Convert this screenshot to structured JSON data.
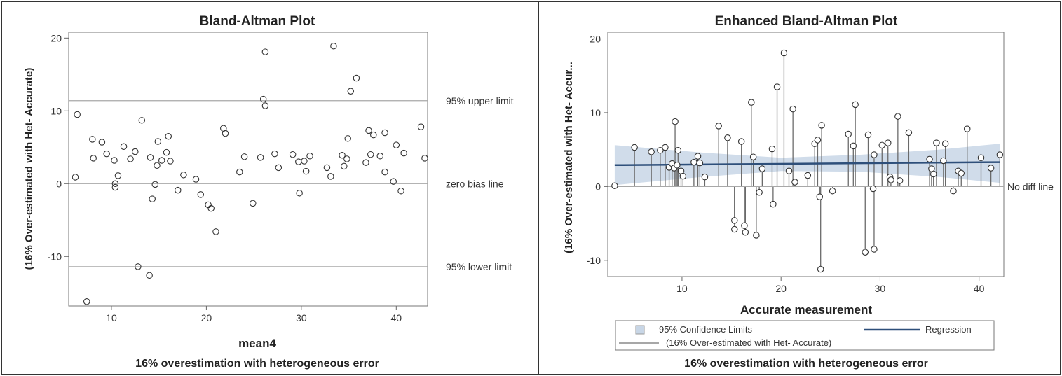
{
  "chart_data": [
    {
      "type": "scatter",
      "title": "Bland-Altman Plot",
      "xlabel": "mean4",
      "ylabel": "(16% Over-estimated with Het- Accurate)",
      "caption": "16% overestimation with heterogeneous error",
      "xlim": [
        5.5,
        43.3
      ],
      "ylim": [
        -16.8,
        20.8
      ],
      "xticks": [
        10,
        20,
        30,
        40
      ],
      "yticks": [
        -10,
        0,
        10,
        20
      ],
      "grid": false,
      "reference_lines": [
        {
          "y": 11.4,
          "label": "95% upper limit"
        },
        {
          "y": 0,
          "label": "zero bias line"
        },
        {
          "y": -11.4,
          "label": "95% lower limit"
        }
      ],
      "points": [
        [
          6.2,
          0.9
        ],
        [
          6.4,
          9.5
        ],
        [
          7.4,
          -16.2
        ],
        [
          8.0,
          6.1
        ],
        [
          8.1,
          3.5
        ],
        [
          9.0,
          5.7
        ],
        [
          9.5,
          4.1
        ],
        [
          10.3,
          3.2
        ],
        [
          10.4,
          0.0
        ],
        [
          10.4,
          -0.5
        ],
        [
          10.7,
          1.1
        ],
        [
          11.3,
          5.1
        ],
        [
          12.0,
          3.4
        ],
        [
          12.5,
          4.4
        ],
        [
          12.8,
          -11.4
        ],
        [
          13.2,
          8.7
        ],
        [
          14.1,
          3.6
        ],
        [
          14.3,
          -2.1
        ],
        [
          14.6,
          -0.1
        ],
        [
          14.8,
          2.5
        ],
        [
          14.9,
          5.8
        ],
        [
          15.3,
          3.2
        ],
        [
          15.8,
          4.3
        ],
        [
          16.0,
          6.5
        ],
        [
          16.2,
          3.1
        ],
        [
          14.0,
          -12.6
        ],
        [
          17.0,
          -0.9
        ],
        [
          17.6,
          1.2
        ],
        [
          18.9,
          0.6
        ],
        [
          19.4,
          -1.5
        ],
        [
          20.2,
          -2.9
        ],
        [
          20.5,
          -3.4
        ],
        [
          21.0,
          -6.6
        ],
        [
          21.8,
          7.6
        ],
        [
          22.0,
          6.9
        ],
        [
          23.5,
          1.6
        ],
        [
          24.0,
          3.7
        ],
        [
          24.9,
          -2.7
        ],
        [
          25.7,
          3.6
        ],
        [
          26.0,
          11.6
        ],
        [
          26.2,
          18.1
        ],
        [
          26.2,
          10.7
        ],
        [
          27.2,
          4.1
        ],
        [
          27.6,
          2.2
        ],
        [
          29.1,
          4.0
        ],
        [
          29.7,
          3.0
        ],
        [
          29.8,
          -1.3
        ],
        [
          30.3,
          3.1
        ],
        [
          30.5,
          1.7
        ],
        [
          30.9,
          3.8
        ],
        [
          32.7,
          2.2
        ],
        [
          33.1,
          1.0
        ],
        [
          33.4,
          18.9
        ],
        [
          34.3,
          3.9
        ],
        [
          34.5,
          2.4
        ],
        [
          34.8,
          3.4
        ],
        [
          34.9,
          6.2
        ],
        [
          35.2,
          12.7
        ],
        [
          35.8,
          14.5
        ],
        [
          36.8,
          2.9
        ],
        [
          37.1,
          7.3
        ],
        [
          37.3,
          4.0
        ],
        [
          37.6,
          6.7
        ],
        [
          38.3,
          3.8
        ],
        [
          38.8,
          7.0
        ],
        [
          38.8,
          1.6
        ],
        [
          39.7,
          0.3
        ],
        [
          40.0,
          5.3
        ],
        [
          40.5,
          -1.0
        ],
        [
          40.8,
          4.2
        ],
        [
          42.6,
          7.8
        ],
        [
          43.0,
          3.5
        ]
      ]
    },
    {
      "type": "scatter",
      "title": "Enhanced Bland-Altman Plot",
      "xlabel": "Accurate measurement",
      "ylabel": "(16% Over-estimated with Het- Accur...",
      "caption": "16% overestimation with heterogeneous error",
      "xlim": [
        2.5,
        42.5
      ],
      "ylim": [
        -12.2,
        20.9
      ],
      "xticks": [
        10,
        20,
        30,
        40
      ],
      "yticks": [
        -10,
        0,
        10,
        20
      ],
      "grid": false,
      "reference_line": {
        "y": 0,
        "label": "No diff line"
      },
      "regression": {
        "x": [
          3.2,
          42.1
        ],
        "y": [
          2.9,
          3.3
        ]
      },
      "confidence_band": {
        "x": [
          3.2,
          12,
          20,
          28,
          36,
          42.1
        ],
        "lower": [
          0.2,
          1.3,
          2.1,
          2.0,
          1.3,
          0.5
        ],
        "upper": [
          5.6,
          4.6,
          3.9,
          4.3,
          5.0,
          5.8
        ]
      },
      "legend": [
        {
          "kind": "band",
          "label": "95% Confidence Limits",
          "color": "#c8d6e6"
        },
        {
          "kind": "line",
          "label": "Regression",
          "color": "#2e4f7a"
        },
        {
          "kind": "line",
          "label": "(16% Over-estimated with Het- Accurate)",
          "color": "#8a8a8a"
        }
      ],
      "points": [
        [
          3.2,
          0.1
        ],
        [
          5.2,
          5.3
        ],
        [
          6.9,
          4.7
        ],
        [
          7.8,
          4.9
        ],
        [
          8.3,
          5.3
        ],
        [
          8.7,
          2.6
        ],
        [
          9.0,
          3.1
        ],
        [
          9.2,
          2.5
        ],
        [
          9.3,
          8.8
        ],
        [
          9.5,
          2.9
        ],
        [
          9.6,
          4.9
        ],
        [
          9.9,
          2.1
        ],
        [
          10.1,
          1.4
        ],
        [
          11.2,
          3.3
        ],
        [
          11.6,
          4.1
        ],
        [
          11.8,
          3.2
        ],
        [
          12.3,
          1.3
        ],
        [
          13.7,
          8.2
        ],
        [
          14.6,
          6.6
        ],
        [
          15.3,
          -4.6
        ],
        [
          15.3,
          -5.8
        ],
        [
          16.0,
          6.1
        ],
        [
          16.3,
          -5.3
        ],
        [
          16.4,
          -6.2
        ],
        [
          17.0,
          11.4
        ],
        [
          17.2,
          4.0
        ],
        [
          17.5,
          -6.6
        ],
        [
          17.8,
          -0.8
        ],
        [
          18.1,
          2.4
        ],
        [
          19.1,
          5.1
        ],
        [
          19.2,
          -2.4
        ],
        [
          19.6,
          13.5
        ],
        [
          20.3,
          18.1
        ],
        [
          20.8,
          2.1
        ],
        [
          21.2,
          10.5
        ],
        [
          21.4,
          0.6
        ],
        [
          22.7,
          1.5
        ],
        [
          23.4,
          5.8
        ],
        [
          23.7,
          6.3
        ],
        [
          23.9,
          -1.4
        ],
        [
          24.1,
          8.3
        ],
        [
          24.0,
          -11.2
        ],
        [
          25.2,
          -0.6
        ],
        [
          26.8,
          7.1
        ],
        [
          27.3,
          5.5
        ],
        [
          27.5,
          11.1
        ],
        [
          28.5,
          -8.9
        ],
        [
          28.8,
          7.0
        ],
        [
          29.3,
          -0.3
        ],
        [
          29.4,
          -8.5
        ],
        [
          29.4,
          4.3
        ],
        [
          30.2,
          5.6
        ],
        [
          30.8,
          5.9
        ],
        [
          31.0,
          1.3
        ],
        [
          31.1,
          0.9
        ],
        [
          31.8,
          9.5
        ],
        [
          32.0,
          0.8
        ],
        [
          32.9,
          7.3
        ],
        [
          35.0,
          3.7
        ],
        [
          35.2,
          2.4
        ],
        [
          35.4,
          1.7
        ],
        [
          35.7,
          5.9
        ],
        [
          36.4,
          3.5
        ],
        [
          36.6,
          5.8
        ],
        [
          37.4,
          -0.6
        ],
        [
          37.9,
          2.1
        ],
        [
          38.2,
          1.8
        ],
        [
          38.8,
          7.8
        ],
        [
          40.2,
          3.9
        ],
        [
          41.2,
          2.5
        ],
        [
          42.1,
          4.3
        ]
      ]
    }
  ]
}
